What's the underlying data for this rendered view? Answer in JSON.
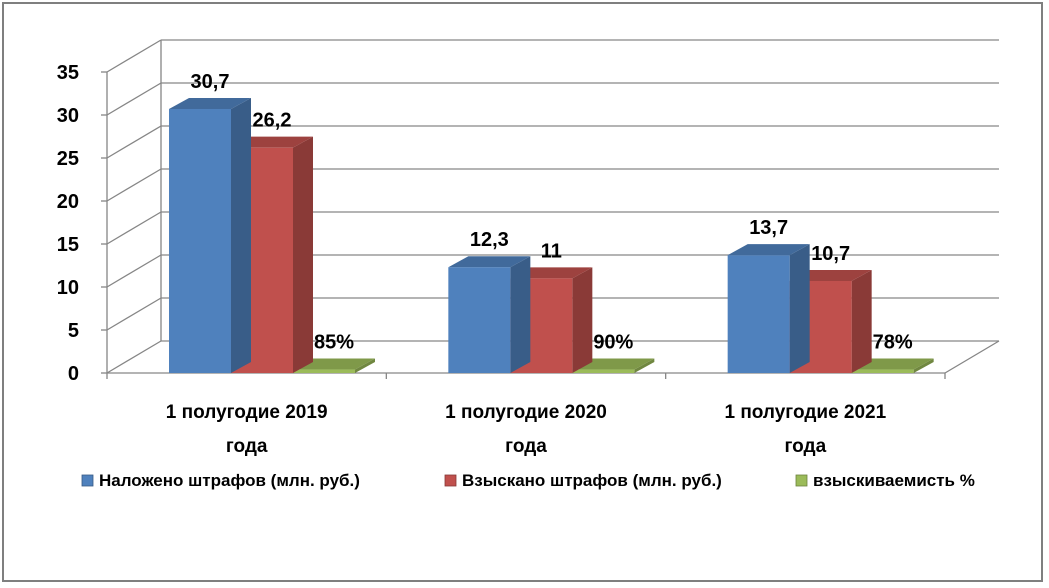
{
  "chart_data": {
    "type": "bar",
    "categories": [
      [
        "1 полугодие 2019",
        "года"
      ],
      [
        "1 полугодие 2020",
        "года"
      ],
      [
        "1 полугодие 2021",
        "года"
      ]
    ],
    "series": [
      {
        "name": "Наложено штрафов (млн. руб.)",
        "values": [
          30.7,
          12.3,
          13.7
        ],
        "labels": [
          "30,7",
          "12,3",
          "13,7"
        ],
        "color": "#4f81bd"
      },
      {
        "name": "Взыскано штрафов (млн. руб.)",
        "values": [
          26.2,
          11,
          10.7
        ],
        "labels": [
          "26,2",
          "11",
          "10,7"
        ],
        "color": "#c0504d"
      },
      {
        "name": "взыскиваемисть %",
        "values": [
          85,
          90,
          78
        ],
        "plotted_values": [
          0.4,
          0.4,
          0.4
        ],
        "labels": [
          "85%",
          "90%",
          "78%"
        ],
        "color": "#9bbb59"
      }
    ],
    "ylim": [
      0,
      35
    ],
    "yticks": [
      0,
      5,
      10,
      15,
      20,
      25,
      30,
      35
    ],
    "grid": true,
    "legend": "bottom",
    "three_d": true
  }
}
